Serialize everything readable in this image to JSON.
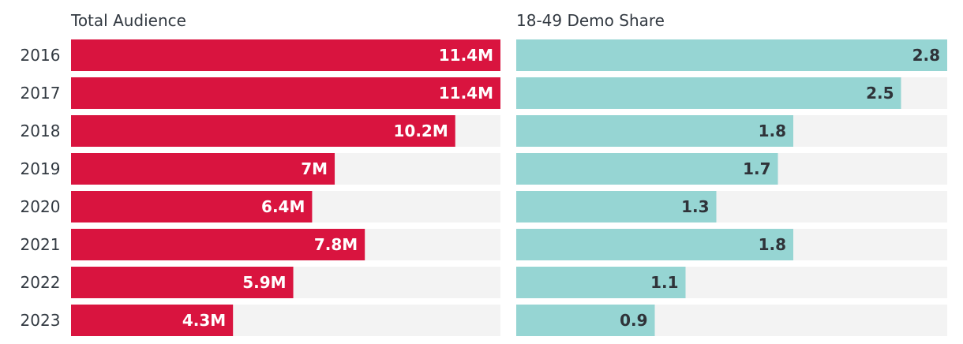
{
  "chart_data": [
    {
      "type": "bar",
      "orientation": "horizontal",
      "title": "Total Audience",
      "unit": "M",
      "categories": [
        "2016",
        "2017",
        "2018",
        "2019",
        "2020",
        "2021",
        "2022",
        "2023"
      ],
      "values": [
        11.4,
        11.4,
        10.2,
        7,
        6.4,
        7.8,
        5.9,
        4.3
      ],
      "value_labels": [
        "11.4M",
        "11.4M",
        "10.2M",
        "7M",
        "6.4M",
        "7.8M",
        "5.9M",
        "4.3M"
      ],
      "xlim": [
        0,
        11.4
      ],
      "grid": false
    },
    {
      "type": "bar",
      "orientation": "horizontal",
      "title": "18-49 Demo Share",
      "categories": [
        "2016",
        "2017",
        "2018",
        "2019",
        "2020",
        "2021",
        "2022",
        "2023"
      ],
      "values": [
        2.8,
        2.5,
        1.8,
        1.7,
        1.3,
        1.8,
        1.1,
        0.9
      ],
      "value_labels": [
        "2.8",
        "2.5",
        "1.8",
        "1.7",
        "1.3",
        "1.8",
        "1.1",
        "0.9"
      ],
      "xlim": [
        0,
        2.8
      ],
      "grid": false
    }
  ],
  "colors": {
    "audience_bar": "#d9143f",
    "demo_bar": "#96d5d3",
    "track": "#f3f3f3",
    "text": "#333a42",
    "label_on_red": "#ffffff",
    "label_on_teal": "#2f3339"
  }
}
